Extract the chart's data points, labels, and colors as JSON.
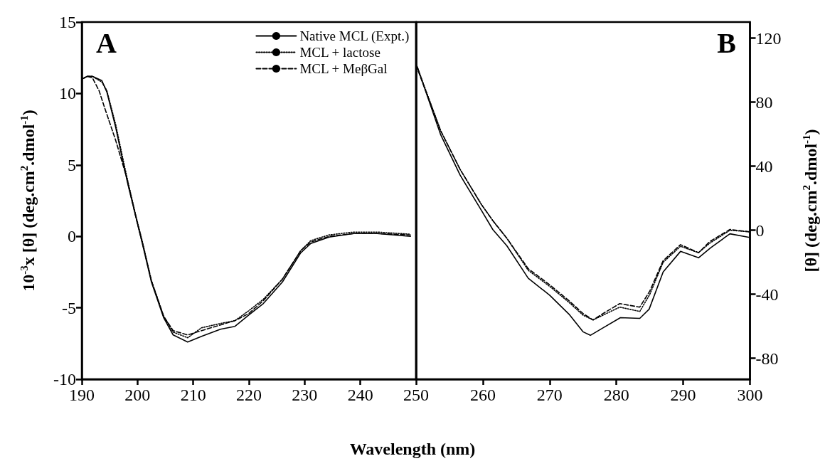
{
  "chart_data": [
    {
      "type": "line",
      "xlabel": "Wavelength (nm)",
      "ylabel": "10$^{-3}$x [θ] (deg.cm$^{2}$.dmol$^{-1}$)",
      "legend": "top right",
      "marker": "none",
      "annotations": [
        "A"
      ],
      "xlim": [
        190,
        250
      ],
      "xticks": [
        190,
        200,
        210,
        220,
        230,
        240,
        250
      ],
      "ylim": [
        -10,
        15
      ],
      "yticks": [
        -10,
        -5,
        0,
        5,
        10,
        15
      ],
      "series": [
        {
          "name": "Native MCL (Expt.)",
          "color": "#000000",
          "line_style": "solid",
          "x": [
            190,
            191,
            191.9,
            193.6,
            194.5,
            196.1,
            197.4,
            198.3,
            199.8,
            200.9,
            202.5,
            204.7,
            206.4,
            209,
            211.5,
            214.9,
            217.5,
            220,
            222.6,
            226,
            229.3,
            231.1,
            234.4,
            238.8,
            243,
            249
          ],
          "values": [
            11.0,
            11.2,
            11.2,
            10.9,
            10.1,
            7.6,
            5.2,
            3.6,
            1.2,
            -0.55,
            -3.2,
            -5.7,
            -6.9,
            -7.4,
            -7.0,
            -6.5,
            -6.3,
            -5.5,
            -4.7,
            -3.2,
            -1.15,
            -0.5,
            -0.05,
            0.2,
            0.2,
            0.0
          ]
        },
        {
          "name": "MCL + lactose",
          "color": "#000000",
          "line_style": "dotted",
          "x": [
            190,
            191,
            191.9,
            193.6,
            194.5,
            196.1,
            197.4,
            198.3,
            199.8,
            200.9,
            202.5,
            204.7,
            206.4,
            209,
            211.5,
            214.9,
            217.5,
            220,
            222.6,
            226,
            229.3,
            231.1,
            234.4,
            238.8,
            243,
            249
          ],
          "values": [
            11.0,
            11.2,
            11.2,
            10.8,
            10.2,
            7.8,
            5.4,
            3.8,
            1.3,
            -0.4,
            -3.1,
            -5.6,
            -6.7,
            -7.1,
            -6.4,
            -6.1,
            -5.9,
            -5.2,
            -4.4,
            -3.0,
            -1.0,
            -0.3,
            0.1,
            0.3,
            0.3,
            0.15
          ]
        },
        {
          "name": "MCL + MeβGal",
          "color": "#000000",
          "line_style": "dashed",
          "x": [
            190,
            191,
            191.9,
            193.1,
            194.1,
            196.1,
            198,
            199.8,
            200.9,
            202.5,
            204.7,
            206.4,
            209,
            211.5,
            214.9,
            217.5,
            220,
            222.6,
            226,
            229.3,
            231.1,
            234.4,
            238.8,
            243,
            249
          ],
          "values": [
            11.0,
            11.2,
            11.1,
            10.2,
            9.0,
            6.7,
            4.2,
            1.2,
            -0.5,
            -3.1,
            -5.6,
            -6.6,
            -6.9,
            -6.6,
            -6.2,
            -5.9,
            -5.4,
            -4.5,
            -3.0,
            -1.0,
            -0.4,
            0.0,
            0.2,
            0.2,
            0.1
          ]
        }
      ]
    },
    {
      "type": "line",
      "y2label": "[θ] (deg.cm$^{2}$.dmol$^{-1}$)",
      "marker": "none",
      "annotations": [
        "B"
      ],
      "xlim": [
        250,
        300
      ],
      "xticks": [
        260,
        270,
        280,
        290,
        300
      ],
      "y2lim": [
        -93,
        130
      ],
      "y2ticks": [
        -80,
        -40,
        0,
        40,
        80,
        120
      ],
      "series": [
        {
          "color": "#000000",
          "line_style": "solid",
          "axis": "y2",
          "x": [
            250,
            250.2,
            253.7,
            256.6,
            259.8,
            261.5,
            263.6,
            266.8,
            270,
            272.9,
            275,
            276.1,
            277.9,
            280.6,
            283.5,
            284.9,
            287,
            289.6,
            292.3,
            294.1,
            297,
            299.8
          ],
          "values": [
            103,
            101.8,
            59.5,
            34.4,
            12.3,
            0.4,
            -9.7,
            -30,
            -40.5,
            -52.4,
            -63.4,
            -65.6,
            -61.2,
            -54.6,
            -55,
            -49.3,
            -26,
            -13.2,
            -17.2,
            -11,
            -2.2,
            -4.4
          ]
        },
        {
          "color": "#000000",
          "line_style": "dotted",
          "axis": "y2",
          "x": [
            250,
            253.7,
            256.6,
            259.8,
            261.5,
            263.6,
            266.8,
            270,
            272.9,
            275,
            276.5,
            278,
            280.5,
            283.5,
            285,
            287,
            289.6,
            292.3,
            294,
            297,
            300
          ],
          "values": [
            104,
            62,
            38,
            16,
            6,
            -5,
            -25,
            -35,
            -45,
            -53,
            -56,
            -53,
            -48,
            -50.7,
            -40,
            -20,
            -10,
            -14,
            -8,
            0,
            -1
          ]
        },
        {
          "color": "#000000",
          "line_style": "dashed",
          "axis": "y2",
          "x": [
            250,
            253.7,
            256.6,
            259.8,
            261.5,
            263.6,
            266.8,
            270,
            272.9,
            275,
            276.5,
            278,
            280.5,
            283.5,
            285,
            287,
            289.6,
            292.3,
            294,
            297,
            300
          ],
          "values": [
            103,
            62,
            38,
            16,
            6,
            -5,
            -24,
            -34,
            -44,
            -52,
            -56,
            -52,
            -45.8,
            -48,
            -38,
            -19,
            -9,
            -14,
            -7,
            0.5,
            -1
          ]
        }
      ]
    }
  ]
}
